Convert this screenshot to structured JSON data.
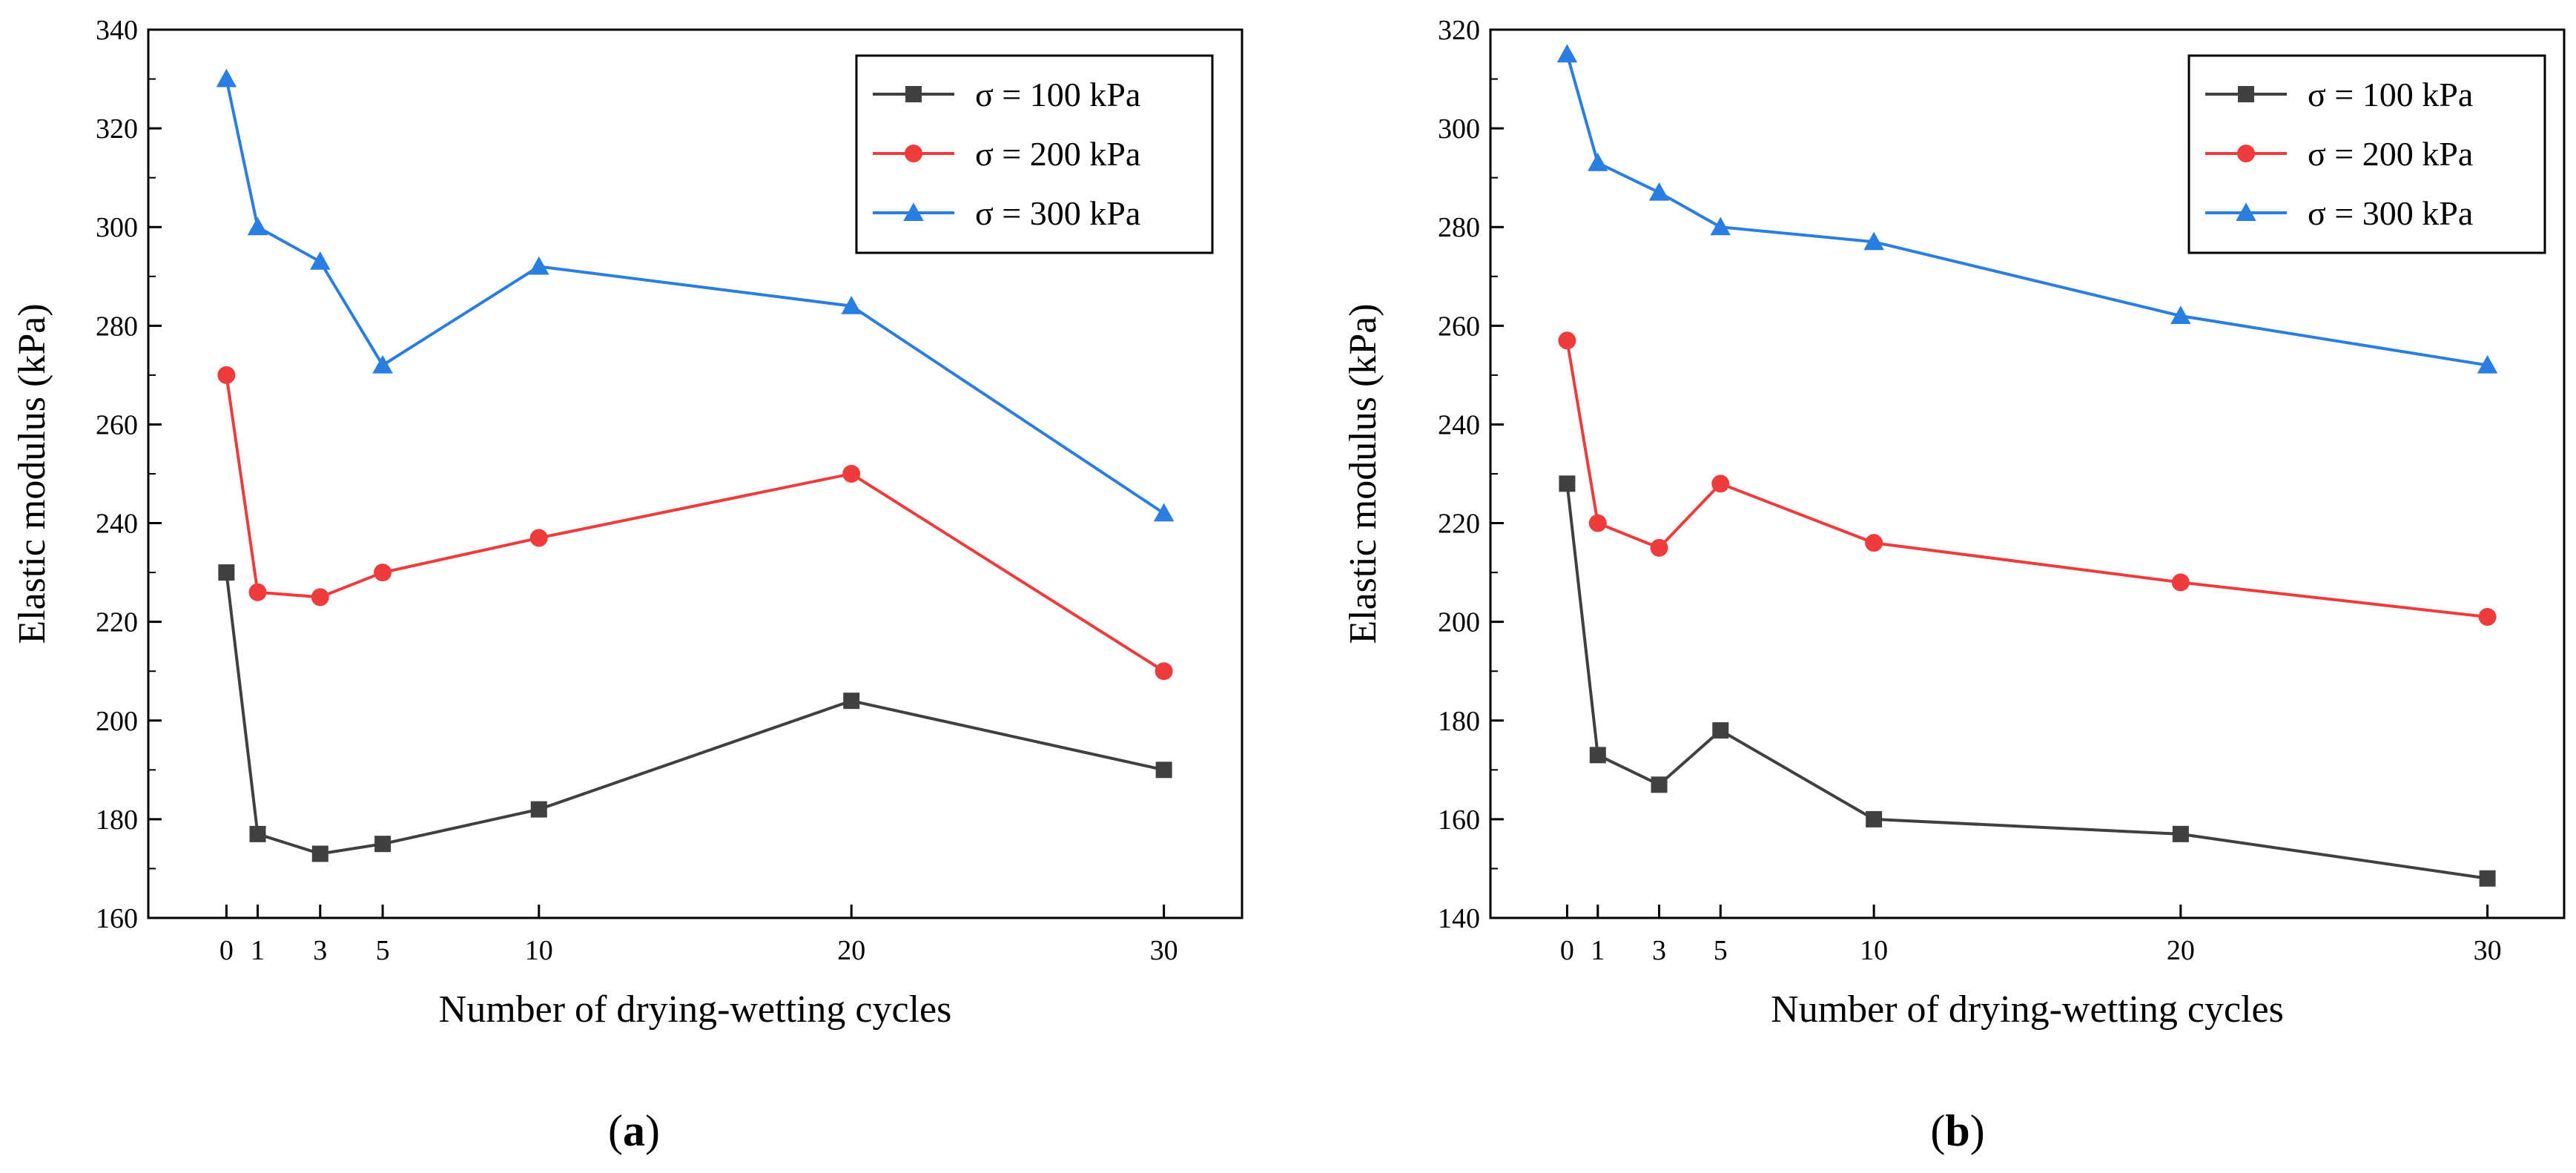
{
  "chart_data": [
    {
      "type": "line",
      "panel_label": "a",
      "xlabel": "Number of drying-wetting cycles",
      "ylabel": "Elastic modulus (kPa)",
      "x": [
        0,
        1,
        3,
        5,
        10,
        20,
        30
      ],
      "x_tick_labels": [
        "0",
        "1",
        "3",
        "5",
        "10",
        "20",
        "30"
      ],
      "xlim": [
        -2.5,
        32.5
      ],
      "ylim": [
        160,
        340
      ],
      "y_ticks": [
        160,
        180,
        200,
        220,
        240,
        260,
        280,
        300,
        320,
        340
      ],
      "legend_position": "top-right",
      "series": [
        {
          "name": "σ = 100 kPa",
          "color": "#404040",
          "marker": "square",
          "values": [
            230,
            177,
            173,
            175,
            182,
            204,
            190
          ]
        },
        {
          "name": "σ = 200 kPa",
          "color": "#ef3b3b",
          "marker": "circle",
          "values": [
            270,
            226,
            225,
            230,
            237,
            250,
            210
          ]
        },
        {
          "name": "σ = 300 kPa",
          "color": "#2a7de1",
          "marker": "triangle",
          "values": [
            330,
            300,
            293,
            272,
            292,
            284,
            242
          ]
        }
      ]
    },
    {
      "type": "line",
      "panel_label": "b",
      "xlabel": "Number of drying-wetting cycles",
      "ylabel": "Elastic modulus (kPa)",
      "x": [
        0,
        1,
        3,
        5,
        10,
        20,
        30
      ],
      "x_tick_labels": [
        "0",
        "1",
        "3",
        "5",
        "10",
        "20",
        "30"
      ],
      "xlim": [
        -2.5,
        32.5
      ],
      "ylim": [
        140,
        320
      ],
      "y_ticks": [
        140,
        160,
        180,
        200,
        220,
        240,
        260,
        280,
        300,
        320
      ],
      "legend_position": "top-right",
      "series": [
        {
          "name": "σ = 100 kPa",
          "color": "#404040",
          "marker": "square",
          "values": [
            228,
            173,
            167,
            178,
            160,
            157,
            148
          ]
        },
        {
          "name": "σ = 200 kPa",
          "color": "#ef3b3b",
          "marker": "circle",
          "values": [
            257,
            220,
            215,
            228,
            216,
            208,
            201
          ]
        },
        {
          "name": "σ = 300 kPa",
          "color": "#2a7de1",
          "marker": "triangle",
          "values": [
            315,
            293,
            287,
            280,
            277,
            262,
            252
          ]
        }
      ]
    }
  ]
}
